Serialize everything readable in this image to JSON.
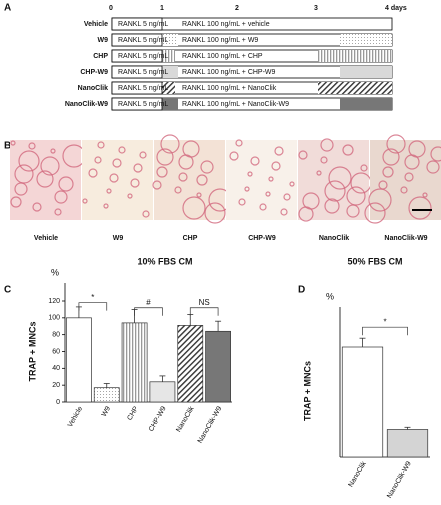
{
  "panels": [
    "A",
    "B",
    "C",
    "D"
  ],
  "panel_a": {
    "days": [
      "0",
      "1",
      "2",
      "3",
      "4 days"
    ],
    "rows": [
      {
        "label": "Vehicle",
        "pre": "RANKL 5 ng/mL",
        "post": "RANKL 100 ng/mL + vehicle"
      },
      {
        "label": "W9",
        "pre": "RANKL 5 ng/mL",
        "post": "RANKL 100 ng/mL + W9"
      },
      {
        "label": "CHP",
        "pre": "RANKL 5 ng/mL",
        "post": "RANKL 100 ng/mL + CHP"
      },
      {
        "label": "CHP-W9",
        "pre": "RANKL 5 ng/mL",
        "post": "RANKL 100 ng/mL + CHP-W9"
      },
      {
        "label": "NanoClik",
        "pre": "RANKL 5 ng/mL",
        "post": "RANKL 100 ng/mL + NanoClik"
      },
      {
        "label": "NanoClik-W9",
        "pre": "RANKL 5 ng/mL",
        "post": "RANKL 100 ng/mL + NanoClik-W9"
      }
    ]
  },
  "panel_b": {
    "labels": [
      "Vehicle",
      "W9",
      "CHP",
      "CHP-W9",
      "NanoClik",
      "NanoClik-W9"
    ]
  },
  "chart_data": [
    {
      "type": "bar",
      "title": "10% FBS CM",
      "unit": "%",
      "y_label": "TRAP + MNCs",
      "categories": [
        "Vehicle",
        "W9",
        "CHP",
        "CHP-W9",
        "NanoClik",
        "NanoClik-W9"
      ],
      "values": [
        100,
        17,
        94,
        24,
        91,
        84
      ],
      "errors": [
        13,
        5,
        16,
        7,
        13,
        12
      ],
      "colors": [
        "#ffffff",
        "#ffffff",
        "#ffffff",
        "#e6e6e6",
        "#ffffff",
        "#777777"
      ],
      "patterns": [
        "none",
        "dots",
        "vlines",
        "none",
        "hatch",
        "none"
      ],
      "ylim": [
        0,
        120
      ],
      "yticks": [
        0,
        20,
        40,
        60,
        80,
        100,
        120
      ],
      "annotations": [
        "*",
        "#",
        "NS"
      ]
    },
    {
      "type": "bar",
      "title": "50% FBS CM",
      "unit": "%",
      "y_label": "TRAP + MNCs",
      "categories": [
        "NanoClik",
        "NanoClik-W9"
      ],
      "values": [
        100,
        25
      ],
      "errors": [
        8,
        2
      ],
      "colors": [
        "#ffffff",
        "#d4d4d4"
      ],
      "patterns": [
        "none",
        "none"
      ],
      "ylim": [
        0,
        120
      ],
      "annotations": [
        "*"
      ]
    }
  ]
}
